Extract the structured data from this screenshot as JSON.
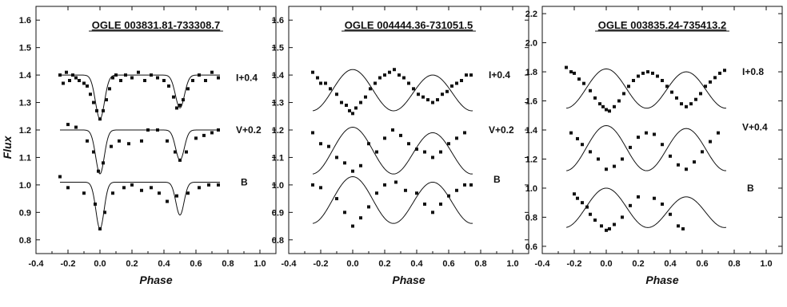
{
  "figure": {
    "ylabel": "Flux",
    "xlabel": "Phase"
  },
  "chart_data": [
    {
      "type": "scatter",
      "title": "OGLE 003831.81-733308.7",
      "xlabel": "Phase",
      "ylabel": "Flux",
      "xlim": [
        -0.4,
        1.1
      ],
      "ylim": [
        0.75,
        1.65
      ],
      "xticks": [
        "-0.4",
        "-0.2",
        "0.0",
        "0.2",
        "0.4",
        "0.6",
        "0.8",
        "1.0"
      ],
      "yticks": [
        "0.8",
        "0.9",
        "1.0",
        "1.1",
        "1.2",
        "1.3",
        "1.4",
        "1.5",
        "1.6"
      ],
      "grid": false,
      "series": [
        {
          "name": "I+0.4",
          "label_pos": [
            0.85,
            1.39
          ],
          "curve": {
            "base": 1.4,
            "depth1": 0.16,
            "depth2": 0.12,
            "w1": 0.04,
            "w2": 0.04,
            "oa": 0
          },
          "points": [
            [
              -0.25,
              1.4
            ],
            [
              -0.23,
              1.37
            ],
            [
              -0.21,
              1.41
            ],
            [
              -0.19,
              1.38
            ],
            [
              -0.17,
              1.4
            ],
            [
              -0.15,
              1.39
            ],
            [
              -0.13,
              1.38
            ],
            [
              -0.1,
              1.37
            ],
            [
              -0.08,
              1.36
            ],
            [
              -0.06,
              1.33
            ],
            [
              -0.04,
              1.3
            ],
            [
              -0.02,
              1.27
            ],
            [
              0.0,
              1.24
            ],
            [
              0.02,
              1.27
            ],
            [
              0.04,
              1.31
            ],
            [
              0.06,
              1.35
            ],
            [
              0.08,
              1.39
            ],
            [
              0.1,
              1.4
            ],
            [
              0.13,
              1.38
            ],
            [
              0.16,
              1.4
            ],
            [
              0.2,
              1.39
            ],
            [
              0.24,
              1.41
            ],
            [
              0.28,
              1.38
            ],
            [
              0.32,
              1.4
            ],
            [
              0.36,
              1.39
            ],
            [
              0.4,
              1.38
            ],
            [
              0.43,
              1.36
            ],
            [
              0.46,
              1.32
            ],
            [
              0.48,
              1.28
            ],
            [
              0.5,
              1.29
            ],
            [
              0.52,
              1.31
            ],
            [
              0.55,
              1.35
            ],
            [
              0.58,
              1.38
            ],
            [
              0.62,
              1.4
            ],
            [
              0.66,
              1.38
            ],
            [
              0.7,
              1.41
            ],
            [
              0.74,
              1.39
            ]
          ]
        },
        {
          "name": "V+0.2",
          "label_pos": [
            0.85,
            1.2
          ],
          "curve": {
            "base": 1.2,
            "depth1": 0.16,
            "depth2": 0.11,
            "w1": 0.038,
            "w2": 0.038,
            "oa": -0.015
          },
          "points": [
            [
              -0.2,
              1.22
            ],
            [
              -0.15,
              1.21
            ],
            [
              -0.08,
              1.16
            ],
            [
              -0.04,
              1.12
            ],
            [
              -0.01,
              1.05
            ],
            [
              0.02,
              1.08
            ],
            [
              0.07,
              1.14
            ],
            [
              0.12,
              1.16
            ],
            [
              0.18,
              1.15
            ],
            [
              0.26,
              1.16
            ],
            [
              0.3,
              1.2
            ],
            [
              0.36,
              1.2
            ],
            [
              0.42,
              1.16
            ],
            [
              0.47,
              1.12
            ],
            [
              0.5,
              1.09
            ],
            [
              0.54,
              1.12
            ],
            [
              0.6,
              1.17
            ],
            [
              0.65,
              1.18
            ],
            [
              0.7,
              1.19
            ],
            [
              0.74,
              1.2
            ]
          ]
        },
        {
          "name": "B",
          "label_pos": [
            0.88,
            1.01
          ],
          "curve": {
            "base": 1.01,
            "depth1": 0.17,
            "depth2": 0.12,
            "w1": 0.036,
            "w2": 0.036,
            "oa": -0.015
          },
          "points": [
            [
              -0.25,
              1.03
            ],
            [
              -0.2,
              0.99
            ],
            [
              -0.1,
              0.97
            ],
            [
              -0.03,
              0.93
            ],
            [
              0.0,
              0.84
            ],
            [
              0.03,
              0.9
            ],
            [
              0.08,
              0.97
            ],
            [
              0.15,
              0.99
            ],
            [
              0.2,
              1.0
            ],
            [
              0.26,
              0.98
            ],
            [
              0.32,
              0.99
            ],
            [
              0.37,
              0.97
            ],
            [
              0.42,
              0.94
            ],
            [
              0.48,
              0.96
            ],
            [
              0.55,
              0.97
            ],
            [
              0.62,
              0.99
            ],
            [
              0.68,
              1.0
            ],
            [
              0.74,
              1.0
            ]
          ]
        }
      ]
    },
    {
      "type": "scatter",
      "title": "OGLE 004444.36-731051.5",
      "xlabel": "Phase",
      "ylabel": "",
      "xlim": [
        -0.4,
        1.1
      ],
      "ylim": [
        0.75,
        1.65
      ],
      "xticks": [
        "-0.4",
        "-0.2",
        "0.0",
        "0.2",
        "0.4",
        "0.6",
        "0.8",
        "1.0"
      ],
      "yticks": [
        "0.8",
        "0.9",
        "1.0",
        "1.1",
        "1.2",
        "1.3",
        "1.4",
        "1.5",
        "1.6"
      ],
      "grid": false,
      "series": [
        {
          "name": "I+0.4",
          "label_pos": [
            0.85,
            1.4
          ],
          "curve": {
            "cos": true,
            "center": 1.34,
            "amp": 0.07,
            "oa": 0.0,
            "secondary": 0.01
          },
          "points": [
            [
              -0.25,
              1.41
            ],
            [
              -0.22,
              1.39
            ],
            [
              -0.2,
              1.37
            ],
            [
              -0.17,
              1.37
            ],
            [
              -0.14,
              1.35
            ],
            [
              -0.1,
              1.33
            ],
            [
              -0.07,
              1.3
            ],
            [
              -0.04,
              1.29
            ],
            [
              -0.02,
              1.27
            ],
            [
              0.0,
              1.26
            ],
            [
              0.02,
              1.28
            ],
            [
              0.05,
              1.3
            ],
            [
              0.08,
              1.32
            ],
            [
              0.11,
              1.35
            ],
            [
              0.14,
              1.37
            ],
            [
              0.17,
              1.39
            ],
            [
              0.2,
              1.4
            ],
            [
              0.23,
              1.41
            ],
            [
              0.26,
              1.42
            ],
            [
              0.29,
              1.4
            ],
            [
              0.32,
              1.39
            ],
            [
              0.35,
              1.37
            ],
            [
              0.38,
              1.35
            ],
            [
              0.41,
              1.33
            ],
            [
              0.44,
              1.32
            ],
            [
              0.47,
              1.31
            ],
            [
              0.5,
              1.3
            ],
            [
              0.53,
              1.31
            ],
            [
              0.56,
              1.33
            ],
            [
              0.59,
              1.34
            ],
            [
              0.62,
              1.36
            ],
            [
              0.65,
              1.37
            ],
            [
              0.68,
              1.38
            ],
            [
              0.71,
              1.4
            ],
            [
              0.74,
              1.4
            ]
          ]
        },
        {
          "name": "V+0.2",
          "label_pos": [
            0.85,
            1.2
          ],
          "curve": {
            "cos": true,
            "center": 1.12,
            "amp": 0.08,
            "oa": 0.0,
            "secondary": 0.01
          },
          "points": [
            [
              -0.25,
              1.19
            ],
            [
              -0.2,
              1.15
            ],
            [
              -0.15,
              1.14
            ],
            [
              -0.1,
              1.1
            ],
            [
              -0.05,
              1.08
            ],
            [
              0.0,
              1.05
            ],
            [
              0.05,
              1.07
            ],
            [
              0.1,
              1.15
            ],
            [
              0.15,
              1.12
            ],
            [
              0.2,
              1.17
            ],
            [
              0.25,
              1.2
            ],
            [
              0.3,
              1.18
            ],
            [
              0.35,
              1.15
            ],
            [
              0.4,
              1.13
            ],
            [
              0.45,
              1.12
            ],
            [
              0.5,
              1.1
            ],
            [
              0.55,
              1.12
            ],
            [
              0.6,
              1.15
            ],
            [
              0.65,
              1.17
            ],
            [
              0.7,
              1.19
            ]
          ]
        },
        {
          "name": "B",
          "label_pos": [
            0.88,
            1.02
          ],
          "curve": {
            "cos": true,
            "center": 0.94,
            "amp": 0.08,
            "oa": 0.0,
            "secondary": 0.01
          },
          "points": [
            [
              -0.25,
              1.0
            ],
            [
              -0.2,
              0.99
            ],
            [
              -0.1,
              0.95
            ],
            [
              -0.05,
              0.9
            ],
            [
              0.0,
              0.85
            ],
            [
              0.05,
              0.88
            ],
            [
              0.1,
              0.92
            ],
            [
              0.15,
              0.97
            ],
            [
              0.2,
              1.0
            ],
            [
              0.27,
              1.01
            ],
            [
              0.33,
              0.98
            ],
            [
              0.4,
              0.97
            ],
            [
              0.45,
              0.93
            ],
            [
              0.5,
              0.9
            ],
            [
              0.55,
              0.93
            ],
            [
              0.6,
              0.96
            ],
            [
              0.65,
              0.98
            ],
            [
              0.7,
              1.0
            ],
            [
              0.74,
              1.0
            ]
          ]
        }
      ]
    },
    {
      "type": "scatter",
      "title": "OGLE 003835.24-735413.2",
      "xlabel": "Phase",
      "ylabel": "",
      "xlim": [
        -0.4,
        1.1
      ],
      "ylim": [
        0.55,
        2.25
      ],
      "xticks": [
        "-0.4",
        "-0.2",
        "0.0",
        "0.2",
        "0.4",
        "0.6",
        "0.8",
        "1.0"
      ],
      "yticks": [
        "0.6",
        "0.8",
        "1.0",
        "1.2",
        "1.4",
        "1.6",
        "1.8",
        "2.0",
        "2.2"
      ],
      "grid": false,
      "series": [
        {
          "name": "I+0.8",
          "label_pos": [
            0.85,
            1.8
          ],
          "curve": {
            "cos": true,
            "center": 1.68,
            "amp": 0.13,
            "oa": 0.0,
            "secondary": 0.01
          },
          "points": [
            [
              -0.25,
              1.83
            ],
            [
              -0.22,
              1.8
            ],
            [
              -0.2,
              1.79
            ],
            [
              -0.17,
              1.75
            ],
            [
              -0.14,
              1.72
            ],
            [
              -0.1,
              1.67
            ],
            [
              -0.07,
              1.62
            ],
            [
              -0.04,
              1.58
            ],
            [
              -0.02,
              1.56
            ],
            [
              0.0,
              1.54
            ],
            [
              0.02,
              1.53
            ],
            [
              0.05,
              1.56
            ],
            [
              0.08,
              1.6
            ],
            [
              0.11,
              1.65
            ],
            [
              0.14,
              1.7
            ],
            [
              0.17,
              1.74
            ],
            [
              0.2,
              1.77
            ],
            [
              0.23,
              1.79
            ],
            [
              0.26,
              1.8
            ],
            [
              0.29,
              1.79
            ],
            [
              0.32,
              1.77
            ],
            [
              0.35,
              1.74
            ],
            [
              0.38,
              1.7
            ],
            [
              0.41,
              1.66
            ],
            [
              0.44,
              1.62
            ],
            [
              0.47,
              1.58
            ],
            [
              0.5,
              1.56
            ],
            [
              0.53,
              1.58
            ],
            [
              0.56,
              1.61
            ],
            [
              0.59,
              1.65
            ],
            [
              0.62,
              1.7
            ],
            [
              0.65,
              1.73
            ],
            [
              0.68,
              1.76
            ],
            [
              0.71,
              1.79
            ],
            [
              0.74,
              1.81
            ]
          ]
        },
        {
          "name": "V+0.4",
          "label_pos": [
            0.85,
            1.42
          ],
          "curve": {
            "cos": true,
            "center": 1.27,
            "amp": 0.15,
            "oa": 0.0,
            "secondary": 0.01
          },
          "points": [
            [
              -0.22,
              1.38
            ],
            [
              -0.18,
              1.34
            ],
            [
              -0.15,
              1.3
            ],
            [
              -0.1,
              1.25
            ],
            [
              -0.05,
              1.2
            ],
            [
              0.0,
              1.13
            ],
            [
              0.05,
              1.15
            ],
            [
              0.1,
              1.2
            ],
            [
              0.15,
              1.28
            ],
            [
              0.2,
              1.35
            ],
            [
              0.25,
              1.38
            ],
            [
              0.3,
              1.37
            ],
            [
              0.35,
              1.3
            ],
            [
              0.4,
              1.22
            ],
            [
              0.45,
              1.16
            ],
            [
              0.5,
              1.13
            ],
            [
              0.55,
              1.18
            ],
            [
              0.6,
              1.25
            ],
            [
              0.65,
              1.32
            ],
            [
              0.7,
              1.38
            ]
          ]
        },
        {
          "name": "B",
          "label_pos": [
            0.88,
            1.0
          ],
          "curve": {
            "cos": true,
            "center": 0.85,
            "amp": 0.12,
            "oa": 0.0,
            "secondary": 0.03
          },
          "points": [
            [
              -0.2,
              0.96
            ],
            [
              -0.18,
              0.93
            ],
            [
              -0.15,
              0.9
            ],
            [
              -0.12,
              0.87
            ],
            [
              -0.1,
              0.82
            ],
            [
              -0.07,
              0.78
            ],
            [
              -0.03,
              0.74
            ],
            [
              0.0,
              0.71
            ],
            [
              0.02,
              0.72
            ],
            [
              0.05,
              0.75
            ],
            [
              0.1,
              0.8
            ],
            [
              0.15,
              0.88
            ],
            [
              0.2,
              0.94
            ],
            [
              0.3,
              0.93
            ],
            [
              0.35,
              0.89
            ],
            [
              0.4,
              0.82
            ],
            [
              0.45,
              0.74
            ],
            [
              0.48,
              0.72
            ]
          ]
        }
      ]
    }
  ]
}
